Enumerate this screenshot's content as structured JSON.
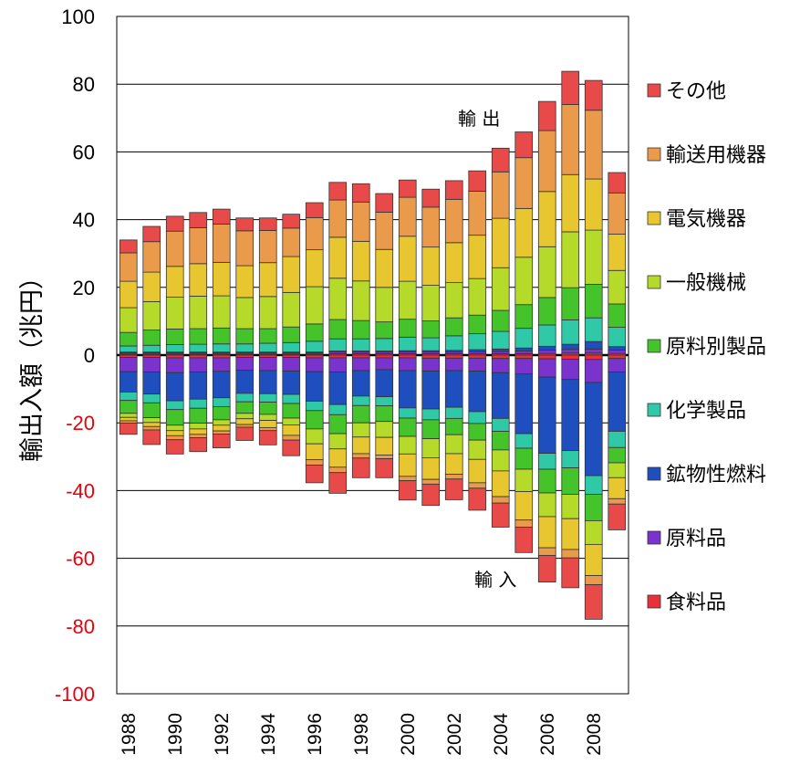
{
  "colors": {
    "negative_ticks": "#e8000b",
    "positive_ticks": "#000000",
    "その他": "#e84a4a",
    "輸送用機器": "#e99a4b",
    "電気機器": "#e8c62f",
    "一般機械": "#b6da29",
    "原料別製品": "#44c42a",
    "化学製品": "#2fc9a8",
    "鉱物性燃料": "#1f4fbf",
    "原料品": "#7a33cc",
    "食料品": "#e8303a"
  },
  "chart_data": {
    "type": "bar",
    "stacked": true,
    "ylabel": "輸出入額（兆円）",
    "ylim": [
      -100,
      100
    ],
    "yticks": [
      "100",
      "80",
      "60",
      "40",
      "20",
      "0",
      "-20",
      "-40",
      "-60",
      "-80",
      "-100"
    ],
    "grid": true,
    "legend_position": "right",
    "legend_entries": [
      "その他",
      "輸送用機器",
      "電気機器",
      "一般機械",
      "原料別製品",
      "化学製品",
      "鉱物性燃料",
      "原料品",
      "食料品"
    ],
    "annotations": [
      {
        "text": "輸 出"
      },
      {
        "text": "輸 入"
      }
    ],
    "categories": [
      "1988",
      "1989",
      "1990",
      "1991",
      "1992",
      "1993",
      "1994",
      "1995",
      "1996",
      "1997",
      "1998",
      "1999",
      "2000",
      "2001",
      "2002",
      "2003",
      "2004",
      "2005",
      "2006",
      "2007",
      "2008",
      "2009"
    ],
    "x_tick_labels": [
      "1988",
      "1990",
      "1992",
      "1994",
      "1996",
      "1998",
      "2000",
      "2002",
      "2004",
      "2006",
      "2008"
    ],
    "exports": [
      {
        "name": "食料品",
        "values": [
          0.3,
          0.3,
          0.3,
          0.3,
          0.3,
          0.3,
          0.3,
          0.3,
          0.3,
          0.4,
          0.4,
          0.4,
          0.4,
          0.4,
          0.4,
          0.4,
          0.4,
          0.4,
          0.5,
          0.6,
          0.6,
          0.5
        ]
      },
      {
        "name": "原料品",
        "values": [
          0.4,
          0.4,
          0.4,
          0.4,
          0.4,
          0.4,
          0.4,
          0.4,
          0.4,
          0.5,
          0.5,
          0.5,
          0.5,
          0.5,
          0.5,
          0.6,
          0.7,
          0.8,
          1.0,
          1.1,
          1.2,
          1.0
        ]
      },
      {
        "name": "鉱物性燃料",
        "values": [
          0.2,
          0.2,
          0.2,
          0.2,
          0.2,
          0.2,
          0.2,
          0.2,
          0.2,
          0.3,
          0.3,
          0.3,
          0.4,
          0.4,
          0.5,
          0.6,
          0.7,
          0.9,
          1.1,
          1.5,
          2.2,
          1.0
        ]
      },
      {
        "name": "化学製品",
        "values": [
          1.8,
          2.0,
          2.2,
          2.3,
          2.4,
          2.4,
          2.6,
          2.8,
          3.2,
          3.6,
          3.6,
          3.7,
          4.0,
          3.8,
          4.3,
          4.7,
          5.2,
          5.8,
          6.3,
          7.2,
          7.0,
          5.7
        ]
      },
      {
        "name": "原料別製品",
        "values": [
          4.0,
          4.5,
          4.6,
          4.6,
          4.7,
          4.5,
          4.3,
          4.6,
          5.1,
          5.7,
          5.4,
          4.9,
          5.3,
          5.0,
          5.3,
          5.5,
          6.2,
          7.0,
          8.1,
          9.5,
          9.9,
          6.9
        ]
      },
      {
        "name": "一般機械",
        "values": [
          7.3,
          8.4,
          9.4,
          9.6,
          9.5,
          9.2,
          9.5,
          10.2,
          11.0,
          12.2,
          11.7,
          10.2,
          11.2,
          10.5,
          10.4,
          10.8,
          12.6,
          14.0,
          15.0,
          16.5,
          16.0,
          9.9
        ]
      },
      {
        "name": "電気機器",
        "values": [
          7.8,
          8.7,
          9.1,
          9.6,
          9.9,
          9.4,
          10.0,
          10.6,
          10.9,
          12.1,
          11.7,
          11.2,
          13.3,
          11.3,
          11.8,
          12.8,
          14.6,
          14.4,
          16.3,
          16.9,
          15.1,
          10.7
        ]
      },
      {
        "name": "輸送用機器",
        "values": [
          8.4,
          9.0,
          10.4,
          10.6,
          11.3,
          10.3,
          9.5,
          8.4,
          9.5,
          11.0,
          11.6,
          11.0,
          11.5,
          11.8,
          12.8,
          13.0,
          13.7,
          15.0,
          18.0,
          20.7,
          20.3,
          12.2
        ]
      },
      {
        "name": "その他",
        "values": [
          3.8,
          4.5,
          4.4,
          4.5,
          4.4,
          3.8,
          3.7,
          4.1,
          4.4,
          5.2,
          5.4,
          5.5,
          5.1,
          5.3,
          5.5,
          6.0,
          7.0,
          7.6,
          8.6,
          9.8,
          8.8,
          6.0
        ]
      }
    ],
    "imports": [
      {
        "name": "食料品",
        "values": [
          -0.7,
          -0.7,
          -0.8,
          -0.8,
          -0.8,
          -0.7,
          -0.7,
          -0.7,
          -0.8,
          -0.8,
          -0.8,
          -0.8,
          -0.8,
          -0.9,
          -0.9,
          -0.9,
          -1.0,
          -1.0,
          -1.1,
          -1.2,
          -1.3,
          -1.0
        ]
      },
      {
        "name": "原料品",
        "values": [
          -4.2,
          -4.3,
          -4.4,
          -4.2,
          -4.0,
          -3.8,
          -3.9,
          -4.0,
          -4.1,
          -4.2,
          -3.8,
          -3.5,
          -3.8,
          -3.8,
          -3.7,
          -3.8,
          -4.2,
          -4.6,
          -5.4,
          -6.0,
          -6.8,
          -4.0
        ]
      },
      {
        "name": "鉱物性燃料",
        "values": [
          -6.0,
          -6.5,
          -8.3,
          -8.0,
          -7.8,
          -6.8,
          -6.8,
          -6.9,
          -8.7,
          -9.6,
          -7.5,
          -8.0,
          -11.0,
          -11.2,
          -10.8,
          -12.0,
          -13.5,
          -17.6,
          -22.5,
          -21.0,
          -27.5,
          -17.5
        ]
      },
      {
        "name": "化学製品",
        "values": [
          -2.5,
          -2.6,
          -2.6,
          -2.7,
          -2.6,
          -2.5,
          -2.5,
          -2.7,
          -2.8,
          -3.0,
          -2.8,
          -2.7,
          -3.0,
          -3.2,
          -3.3,
          -3.5,
          -3.8,
          -4.3,
          -4.7,
          -5.1,
          -5.5,
          -4.8
        ]
      },
      {
        "name": "原料別製品",
        "values": [
          -3.8,
          -4.4,
          -4.6,
          -4.4,
          -3.9,
          -3.4,
          -3.6,
          -4.3,
          -5.4,
          -5.6,
          -5.1,
          -4.6,
          -5.4,
          -5.6,
          -4.8,
          -4.9,
          -5.5,
          -6.2,
          -7.0,
          -7.8,
          -7.8,
          -4.5
        ]
      },
      {
        "name": "一般機械",
        "values": [
          -1.2,
          -1.4,
          -1.6,
          -1.7,
          -1.6,
          -1.6,
          -1.8,
          -2.0,
          -4.4,
          -4.5,
          -4.2,
          -4.7,
          -5.2,
          -5.6,
          -5.6,
          -5.7,
          -6.2,
          -6.6,
          -7.0,
          -7.2,
          -7.0,
          -4.4
        ]
      },
      {
        "name": "電気機器",
        "values": [
          -1.0,
          -1.2,
          -1.5,
          -1.6,
          -1.7,
          -1.7,
          -2.1,
          -3.1,
          -4.7,
          -5.4,
          -4.9,
          -5.2,
          -6.6,
          -6.4,
          -6.1,
          -6.9,
          -7.6,
          -8.4,
          -9.2,
          -9.1,
          -9.2,
          -6.2
        ]
      },
      {
        "name": "輸送用機器",
        "values": [
          -0.7,
          -1.0,
          -1.2,
          -1.0,
          -0.9,
          -0.8,
          -0.9,
          -1.4,
          -1.6,
          -1.6,
          -1.3,
          -1.1,
          -1.3,
          -1.4,
          -1.4,
          -1.6,
          -1.9,
          -2.1,
          -2.3,
          -2.5,
          -2.7,
          -1.6
        ]
      },
      {
        "name": "その他",
        "values": [
          -3.3,
          -4.3,
          -4.2,
          -4.1,
          -4.1,
          -3.9,
          -4.2,
          -4.6,
          -5.2,
          -6.1,
          -5.8,
          -5.6,
          -5.7,
          -6.3,
          -6.1,
          -6.5,
          -7.1,
          -7.5,
          -7.8,
          -8.8,
          -10.2,
          -7.6
        ]
      }
    ]
  }
}
